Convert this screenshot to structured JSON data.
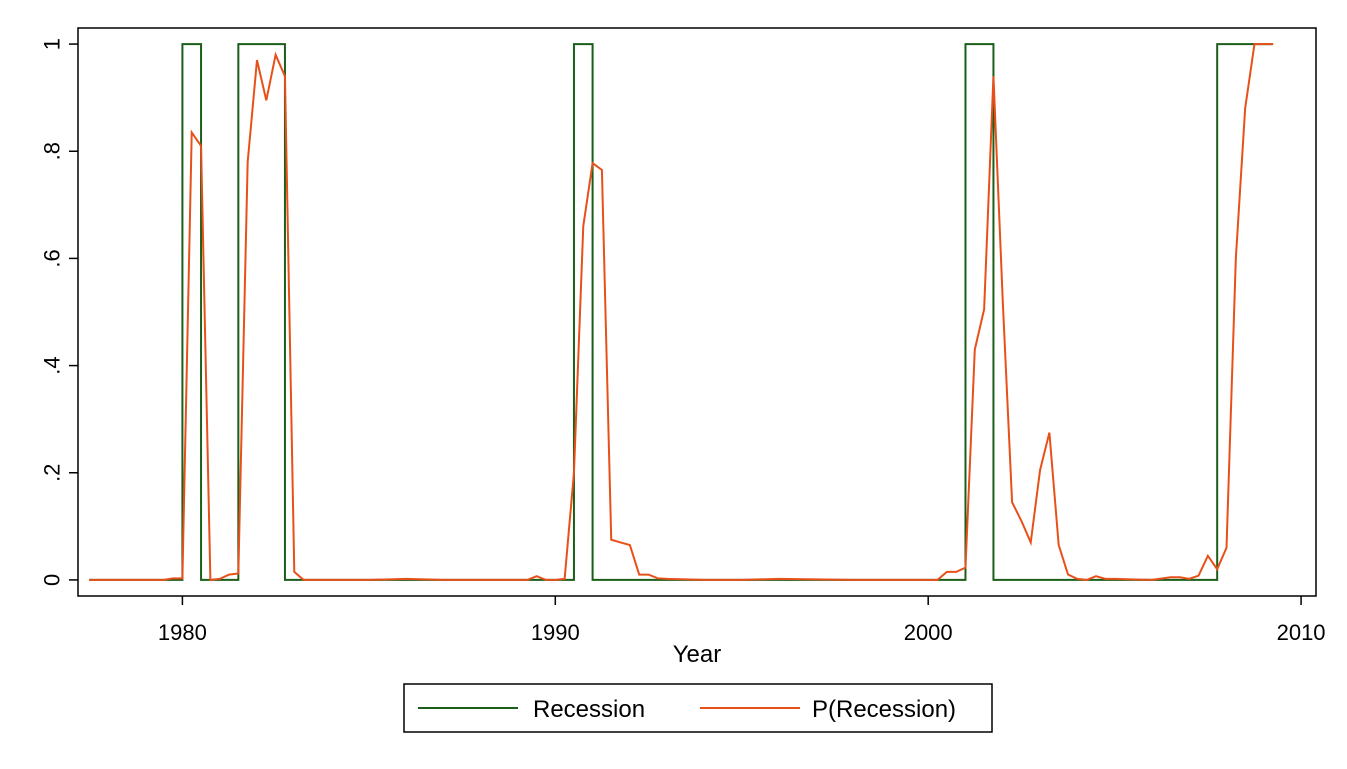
{
  "chart_data": {
    "type": "line",
    "title": "",
    "xlabel": "Year",
    "ylabel": "",
    "xlim": [
      1977.2,
      2010.4
    ],
    "ylim": [
      -0.03,
      1.03
    ],
    "xticks": [
      1980,
      1990,
      2000,
      2010
    ],
    "xtick_labels": [
      "1980",
      "1990",
      "2000",
      "2010"
    ],
    "yticks": [
      0,
      0.2,
      0.4,
      0.6,
      0.8,
      1
    ],
    "ytick_labels": [
      "0",
      ".2",
      ".4",
      ".6",
      ".8",
      "1"
    ],
    "grid": false,
    "legend_position": "bottom-center",
    "series": [
      {
        "name": "Recession",
        "color": "#1a5e1a",
        "line": "step",
        "x": [
          1977.5,
          1980.0,
          1980.0,
          1980.5,
          1980.5,
          1981.5,
          1981.5,
          1982.75,
          1982.75,
          1990.5,
          1990.5,
          1991.0,
          1991.0,
          2001.0,
          2001.0,
          2001.75,
          2001.75,
          2007.75,
          2007.75,
          2009.25
        ],
        "y": [
          0,
          0,
          1,
          1,
          0,
          0,
          1,
          1,
          0,
          0,
          1,
          1,
          0,
          0,
          1,
          1,
          0,
          0,
          1,
          1
        ]
      },
      {
        "name": "P(Recession)",
        "color": "#e8501a",
        "line": "linear",
        "x": [
          1977.5,
          1979.5,
          1979.75,
          1980.0,
          1980.25,
          1980.5,
          1980.75,
          1981.0,
          1981.25,
          1981.5,
          1981.75,
          1982.0,
          1982.25,
          1982.5,
          1982.75,
          1983.0,
          1983.25,
          1985.0,
          1986.0,
          1987.0,
          1989.25,
          1989.5,
          1989.75,
          1990.0,
          1990.25,
          1990.5,
          1990.75,
          1991.0,
          1991.25,
          1991.5,
          1991.75,
          1992.0,
          1992.25,
          1992.5,
          1992.75,
          1993.0,
          1994.0,
          1995.0,
          1996.0,
          1998.0,
          2000.25,
          2000.5,
          2000.75,
          2001.0,
          2001.25,
          2001.5,
          2001.75,
          2002.0,
          2002.25,
          2002.5,
          2002.75,
          2003.0,
          2003.25,
          2003.5,
          2003.75,
          2004.0,
          2004.25,
          2004.5,
          2004.75,
          2005.0,
          2006.0,
          2006.5,
          2006.75,
          2007.0,
          2007.25,
          2007.5,
          2007.75,
          2008.0,
          2008.25,
          2008.5,
          2008.75,
          2009.0,
          2009.25
        ],
        "y": [
          0,
          0,
          0.003,
          0.003,
          0.835,
          0.81,
          0.0,
          0.002,
          0.01,
          0.012,
          0.78,
          0.97,
          0.895,
          0.98,
          0.94,
          0.015,
          0.0,
          0.0,
          0.002,
          0.0,
          0.0,
          0.007,
          0.0,
          0.0,
          0.002,
          0.2,
          0.66,
          0.778,
          0.765,
          0.075,
          0.07,
          0.065,
          0.01,
          0.01,
          0.003,
          0.002,
          0.0,
          0.0,
          0.002,
          0.0,
          0.0,
          0.015,
          0.015,
          0.023,
          0.43,
          0.505,
          0.94,
          0.52,
          0.145,
          0.11,
          0.07,
          0.205,
          0.275,
          0.065,
          0.01,
          0.002,
          0.0,
          0.007,
          0.002,
          0.002,
          0.0,
          0.005,
          0.005,
          0.002,
          0.008,
          0.045,
          0.02,
          0.06,
          0.6,
          0.88,
          1.0,
          1.0,
          1.0
        ]
      }
    ]
  }
}
